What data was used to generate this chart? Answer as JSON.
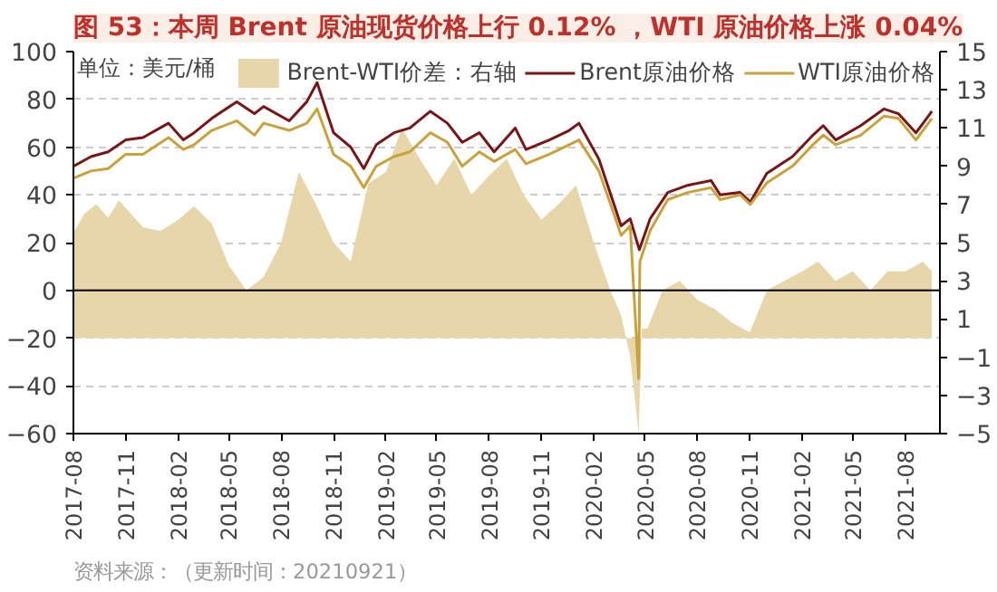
{
  "chart_data": {
    "type": "line",
    "title": "图 53：本周 Brent 原油现货价格上行 0.12% ，WTI 原油价格上涨 0.04%",
    "annotations": [
      {
        "text": "单位：美元/桶"
      },
      {
        "text": "资料来源：（更新时间：20210921）"
      }
    ],
    "series": [
      {
        "name": "Brent-WTI价差：右轴",
        "type": "area",
        "axis": "y2",
        "color": "#e6d6aa",
        "x": [
          "2017-08-01",
          "2017-08-20",
          "2017-09-10",
          "2017-10-01",
          "2017-10-20",
          "2017-11-10",
          "2017-12-01",
          "2018-01-01",
          "2018-02-01",
          "2018-03-01",
          "2018-04-01",
          "2018-05-01",
          "2018-06-01",
          "2018-07-01",
          "2018-08-01",
          "2018-09-01",
          "2018-10-01",
          "2018-11-01",
          "2018-12-01",
          "2019-01-01",
          "2019-02-01",
          "2019-03-01",
          "2019-04-01",
          "2019-05-01",
          "2019-06-01",
          "2019-07-01",
          "2019-08-01",
          "2019-09-01",
          "2019-10-01",
          "2019-11-01",
          "2019-12-01",
          "2020-01-01",
          "2020-02-01",
          "2020-03-01",
          "2020-03-20",
          "2020-04-05",
          "2020-04-20",
          "2020-04-25",
          "2020-05-05",
          "2020-06-01",
          "2020-07-01",
          "2020-08-01",
          "2020-09-01",
          "2020-10-01",
          "2020-11-01",
          "2020-12-01",
          "2021-01-01",
          "2021-02-01",
          "2021-03-01",
          "2021-04-01",
          "2021-05-01",
          "2021-06-01",
          "2021-07-01",
          "2021-08-01",
          "2021-09-01",
          "2021-09-17"
        ],
        "values": [
          5.5,
          6.5,
          7.0,
          6.3,
          7.2,
          6.5,
          5.8,
          5.6,
          6.2,
          6.9,
          6.0,
          3.8,
          2.5,
          3.2,
          5.0,
          8.7,
          7.0,
          5.0,
          4.0,
          8.1,
          8.7,
          11.0,
          9.4,
          8.0,
          9.4,
          7.5,
          8.5,
          9.4,
          7.5,
          6.2,
          7.0,
          8.0,
          5.0,
          2.5,
          1.2,
          -1.0,
          -5.0,
          0.5,
          0.5,
          2.5,
          3.0,
          2.0,
          1.5,
          0.8,
          0.3,
          2.5,
          3.0,
          3.5,
          4.0,
          3.0,
          3.5,
          2.5,
          3.5,
          3.5,
          4.0,
          3.5
        ]
      },
      {
        "name": "Brent原油价格",
        "color": "#7a1416",
        "x": [
          "2017-08-01",
          "2017-09-01",
          "2017-10-01",
          "2017-11-01",
          "2017-12-01",
          "2018-01-15",
          "2018-02-10",
          "2018-03-01",
          "2018-04-01",
          "2018-05-15",
          "2018-06-15",
          "2018-07-01",
          "2018-08-15",
          "2018-09-15",
          "2018-10-03",
          "2018-11-01",
          "2018-12-01",
          "2018-12-24",
          "2019-01-15",
          "2019-02-15",
          "2019-03-15",
          "2019-04-20",
          "2019-05-20",
          "2019-06-15",
          "2019-07-15",
          "2019-08-10",
          "2019-09-16",
          "2019-10-05",
          "2019-11-15",
          "2019-12-20",
          "2020-01-06",
          "2020-02-10",
          "2020-03-09",
          "2020-03-20",
          "2020-04-05",
          "2020-04-21",
          "2020-05-10",
          "2020-06-10",
          "2020-07-15",
          "2020-08-25",
          "2020-09-10",
          "2020-10-15",
          "2020-11-02",
          "2020-12-01",
          "2021-01-15",
          "2021-02-20",
          "2021-03-10",
          "2021-04-01",
          "2021-05-15",
          "2021-06-25",
          "2021-07-20",
          "2021-08-20",
          "2021-09-17"
        ],
        "values": [
          52,
          56,
          58,
          63,
          64,
          70,
          63,
          66,
          72,
          79,
          74,
          77,
          71,
          79,
          87,
          66,
          60,
          51,
          61,
          66,
          68,
          75,
          70,
          62,
          66,
          58,
          68,
          59,
          63,
          67,
          70,
          55,
          35,
          27,
          30,
          17,
          30,
          41,
          44,
          46,
          40,
          41,
          37,
          49,
          56,
          65,
          69,
          63,
          69,
          76,
          74,
          66,
          75
        ]
      },
      {
        "name": "WTI原油价格",
        "color": "#c9a23a",
        "x": [
          "2017-08-01",
          "2017-09-01",
          "2017-10-01",
          "2017-11-01",
          "2017-12-01",
          "2018-01-15",
          "2018-02-10",
          "2018-03-01",
          "2018-04-01",
          "2018-05-15",
          "2018-06-15",
          "2018-07-01",
          "2018-08-15",
          "2018-09-15",
          "2018-10-03",
          "2018-11-01",
          "2018-12-01",
          "2018-12-24",
          "2019-01-15",
          "2019-02-15",
          "2019-03-15",
          "2019-04-20",
          "2019-05-20",
          "2019-06-15",
          "2019-07-15",
          "2019-08-10",
          "2019-09-16",
          "2019-10-05",
          "2019-11-15",
          "2019-12-20",
          "2020-01-06",
          "2020-02-10",
          "2020-03-09",
          "2020-03-20",
          "2020-04-05",
          "2020-04-20",
          "2020-04-22",
          "2020-05-10",
          "2020-06-10",
          "2020-07-15",
          "2020-08-25",
          "2020-09-10",
          "2020-10-15",
          "2020-11-02",
          "2020-12-01",
          "2021-01-15",
          "2021-02-20",
          "2021-03-10",
          "2021-04-01",
          "2021-05-15",
          "2021-06-25",
          "2021-07-20",
          "2021-08-20",
          "2021-09-17"
        ],
        "values": [
          47,
          50,
          51,
          57,
          57,
          64,
          59,
          61,
          67,
          71,
          65,
          70,
          67,
          70,
          76,
          57,
          52,
          43,
          52,
          56,
          58,
          66,
          62,
          52,
          58,
          54,
          59,
          53,
          57,
          61,
          63,
          50,
          31,
          23,
          27,
          -37,
          12,
          25,
          38,
          41,
          43,
          38,
          40,
          36,
          45,
          52,
          61,
          65,
          61,
          65,
          73,
          72,
          63,
          72
        ]
      }
    ],
    "xlim": [
      "2017-08-01",
      "2021-10-01"
    ],
    "xticks": [
      "2017-08",
      "2017-11",
      "2018-02",
      "2018-05",
      "2018-08",
      "2018-11",
      "2019-02",
      "2019-05",
      "2019-08",
      "2019-11",
      "2020-02",
      "2020-05",
      "2020-08",
      "2020-11",
      "2021-02",
      "2021-05",
      "2021-08"
    ],
    "ylim": [
      -60,
      100
    ],
    "yticks": [
      -60,
      -40,
      -20,
      0,
      20,
      40,
      60,
      80,
      100
    ],
    "y2lim": [
      -5,
      15
    ],
    "y2ticks": [
      -5,
      -3,
      -1,
      1,
      3,
      5,
      7,
      9,
      11,
      13,
      15
    ],
    "ref_lines": [
      {
        "axis": "y",
        "value": 0,
        "color": "#000000"
      }
    ],
    "grid": "y",
    "legend": "top"
  }
}
